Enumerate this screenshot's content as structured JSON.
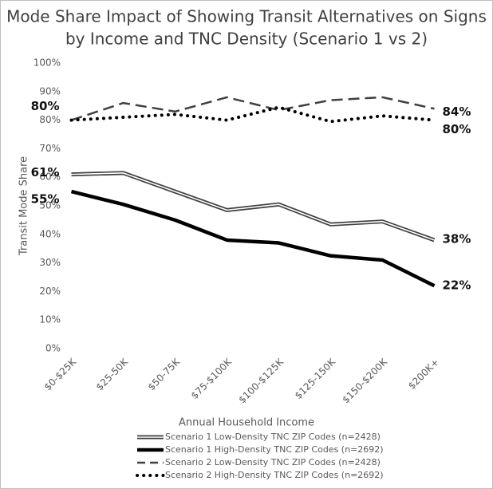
{
  "chart_data": {
    "type": "line",
    "title": [
      "Mode Share Impact of Showing Transit Alternatives on Signs",
      "by Income and TNC Density (Scenario 1 vs 2)"
    ],
    "xlabel": "Annual Household Income",
    "ylabel": "Transit Mode Share",
    "categories": [
      "$0-$25K",
      "$25-50K",
      "$50-75K",
      "$75-$100K",
      "$100-$125K",
      "$125-150K",
      "$150-$200K",
      "$200K+"
    ],
    "ylim": [
      0,
      100
    ],
    "yticks": [
      {
        "value": 0,
        "label": "0%"
      },
      {
        "value": 10,
        "label": "10%"
      },
      {
        "value": 20,
        "label": "20%"
      },
      {
        "value": 30,
        "label": "30%"
      },
      {
        "value": 40,
        "label": "40%"
      },
      {
        "value": 50,
        "label": "50%"
      },
      {
        "value": 60,
        "label": "60%"
      },
      {
        "value": 70,
        "label": "70%"
      },
      {
        "value": 80,
        "label": "80%"
      },
      {
        "value": 90,
        "label": "90%"
      },
      {
        "value": 100,
        "label": "100%"
      }
    ],
    "grid": false,
    "legend": "bottom",
    "series": [
      {
        "name": "Scenario 1 Low-Density TNC ZIP Codes (n=2428)",
        "color": "#404040",
        "style": "double",
        "values": [
          61,
          61.5,
          55,
          48.5,
          50.5,
          43.5,
          44.5,
          38
        ],
        "value_labels": [
          "61%",
          null,
          null,
          null,
          null,
          null,
          null,
          "38%"
        ]
      },
      {
        "name": "Scenario 1 High-Density TNC ZIP Codes (n=2692)",
        "color": "#000000",
        "style": "solid",
        "values": [
          55,
          50.5,
          45,
          38,
          37,
          32.5,
          31,
          22
        ],
        "value_labels": [
          "55%",
          null,
          null,
          null,
          null,
          null,
          null,
          "22%"
        ]
      },
      {
        "name": "Scenario 2 Low-Density TNC ZIP Codes (n=2428)",
        "color": "#404040",
        "style": "dashed",
        "values": [
          80,
          86,
          83,
          88,
          83.5,
          87,
          88,
          84
        ],
        "value_labels": [
          "80%",
          null,
          null,
          null,
          null,
          null,
          null,
          "84%"
        ]
      },
      {
        "name": "Scenario 2 High-Density TNC ZIP Codes (n=2692)",
        "color": "#000000",
        "style": "dotted",
        "values": [
          80,
          81,
          82,
          80,
          84.5,
          79.5,
          81.5,
          80
        ],
        "value_labels": [
          null,
          null,
          null,
          null,
          null,
          null,
          null,
          "80%"
        ]
      }
    ]
  }
}
